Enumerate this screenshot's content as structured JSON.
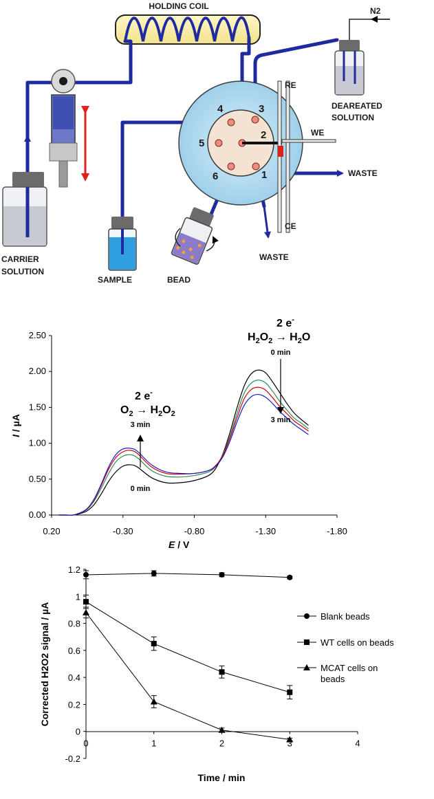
{
  "diagram": {
    "holding_coil": "HOLDING COIL",
    "n2": "N2",
    "re": "RE",
    "we": "WE",
    "ce": "CE",
    "waste_right": "WASTE",
    "waste_bottom": "WASTE",
    "deaerated_1": "DEAREATED",
    "deaerated_2": "SOLUTION",
    "carrier_1": "CARRIER",
    "carrier_2": "SOLUTION",
    "sample": "SAMPLE",
    "bead": "BEAD",
    "ports": [
      "1",
      "2",
      "3",
      "4",
      "5",
      "6"
    ]
  },
  "chart_data": [
    {
      "type": "line",
      "xlabel_italic": "E",
      "xlabel_unit": " / V",
      "ylabel_italic": "I",
      "ylabel_unit": " / µA",
      "xlim": [
        0.2,
        -1.8
      ],
      "ylim": [
        0,
        2.5
      ],
      "x_ticks": [
        "0.20",
        "-0.30",
        "-0.80",
        "-1.30",
        "-1.80"
      ],
      "y_ticks": [
        "0.00",
        "0.50",
        "1.00",
        "1.50",
        "2.00",
        "2.50"
      ],
      "grid": false,
      "series": [
        {
          "color": "#000000",
          "x": [
            0.15,
            0.1,
            0.05,
            0,
            -0.05,
            -0.1,
            -0.15,
            -0.2,
            -0.25,
            -0.3,
            -0.35,
            -0.4,
            -0.5,
            -0.6,
            -0.7,
            -0.8,
            -0.9,
            -0.95,
            -1.0,
            -1.05,
            -1.1,
            -1.15,
            -1.2,
            -1.25,
            -1.3,
            -1.35,
            -1.4,
            -1.45,
            -1.5,
            -1.55,
            -1.6
          ],
          "y": [
            0,
            0,
            0,
            0.02,
            0.06,
            0.15,
            0.3,
            0.47,
            0.6,
            0.68,
            0.7,
            0.67,
            0.52,
            0.45,
            0.45,
            0.48,
            0.55,
            0.65,
            0.85,
            1.15,
            1.5,
            1.8,
            1.97,
            2.02,
            1.98,
            1.85,
            1.7,
            1.55,
            1.42,
            1.33,
            1.25
          ]
        },
        {
          "color": "#2e8b57",
          "x": [
            0.15,
            0.1,
            0.05,
            0,
            -0.05,
            -0.1,
            -0.15,
            -0.2,
            -0.25,
            -0.3,
            -0.35,
            -0.4,
            -0.5,
            -0.6,
            -0.7,
            -0.8,
            -0.9,
            -0.95,
            -1.0,
            -1.05,
            -1.1,
            -1.15,
            -1.2,
            -1.25,
            -1.3,
            -1.35,
            -1.4,
            -1.45,
            -1.5,
            -1.55,
            -1.6
          ],
          "y": [
            0,
            0,
            0,
            0.03,
            0.08,
            0.2,
            0.38,
            0.58,
            0.74,
            0.82,
            0.84,
            0.8,
            0.62,
            0.54,
            0.53,
            0.55,
            0.6,
            0.68,
            0.84,
            1.1,
            1.42,
            1.7,
            1.84,
            1.88,
            1.84,
            1.72,
            1.58,
            1.46,
            1.35,
            1.28,
            1.2
          ]
        },
        {
          "color": "#cc0000",
          "x": [
            0.15,
            0.1,
            0.05,
            0,
            -0.05,
            -0.1,
            -0.15,
            -0.2,
            -0.25,
            -0.3,
            -0.35,
            -0.4,
            -0.5,
            -0.6,
            -0.7,
            -0.8,
            -0.9,
            -0.95,
            -1.0,
            -1.05,
            -1.1,
            -1.15,
            -1.2,
            -1.25,
            -1.3,
            -1.35,
            -1.4,
            -1.45,
            -1.5,
            -1.55,
            -1.6
          ],
          "y": [
            0,
            0,
            0,
            0.03,
            0.09,
            0.22,
            0.42,
            0.64,
            0.8,
            0.88,
            0.9,
            0.86,
            0.67,
            0.58,
            0.57,
            0.58,
            0.62,
            0.69,
            0.83,
            1.07,
            1.36,
            1.62,
            1.75,
            1.78,
            1.74,
            1.63,
            1.51,
            1.41,
            1.31,
            1.24,
            1.17
          ]
        },
        {
          "color": "#1a1acc",
          "x": [
            0.15,
            0.1,
            0.05,
            0,
            -0.05,
            -0.1,
            -0.15,
            -0.2,
            -0.25,
            -0.3,
            -0.35,
            -0.4,
            -0.5,
            -0.6,
            -0.7,
            -0.8,
            -0.9,
            -0.95,
            -1.0,
            -1.05,
            -1.1,
            -1.15,
            -1.2,
            -1.25,
            -1.3,
            -1.35,
            -1.4,
            -1.45,
            -1.5,
            -1.55,
            -1.6
          ],
          "y": [
            0,
            0,
            0,
            0.03,
            0.09,
            0.23,
            0.44,
            0.67,
            0.84,
            0.92,
            0.93,
            0.89,
            0.7,
            0.6,
            0.58,
            0.58,
            0.62,
            0.68,
            0.81,
            1.03,
            1.3,
            1.53,
            1.65,
            1.68,
            1.64,
            1.55,
            1.44,
            1.35,
            1.26,
            1.19,
            1.12
          ]
        }
      ],
      "annotations": {
        "left_electrons": "2 e",
        "left_reactant": "O",
        "left_product": "H",
        "left_top_time": "3 min",
        "left_bottom_time": "0 min",
        "right_electrons": "2 e",
        "right_reactant": "H",
        "right_product": "H",
        "right_top_time": "0 min",
        "right_bottom_time": "3 min",
        "sub2": "2",
        "sup_minus": "-",
        "product_O": "O"
      }
    },
    {
      "type": "scatter",
      "xlabel": "Time / min",
      "ylabel": "Corrected H2O2 signal / µA",
      "xlim": [
        0,
        4
      ],
      "ylim": [
        -0.2,
        1.2
      ],
      "x_ticks": [
        "0",
        "1",
        "2",
        "3",
        "4"
      ],
      "y_ticks": [
        "-0.2",
        "0",
        "0.2",
        "0.4",
        "0.6",
        "0.8",
        "1",
        "1.2"
      ],
      "legend_position": "right",
      "series": [
        {
          "name": "Blank beads",
          "marker": "circle",
          "x": [
            0,
            1,
            2,
            3
          ],
          "y": [
            1.16,
            1.17,
            1.16,
            1.14
          ],
          "err": [
            0.03,
            0.02,
            0.015,
            0.01
          ]
        },
        {
          "name": "WT cells on beads",
          "marker": "square",
          "x": [
            0,
            1,
            2,
            3
          ],
          "y": [
            0.96,
            0.65,
            0.44,
            0.29
          ],
          "err": [
            0.05,
            0.05,
            0.045,
            0.05
          ]
        },
        {
          "name": "MCAT cells on beads",
          "name_line1": "MCAT cells on",
          "name_line2": "beads",
          "marker": "triangle",
          "x": [
            0,
            1,
            2,
            3
          ],
          "y": [
            0.88,
            0.22,
            0.01,
            -0.06
          ],
          "err": [
            0.04,
            0.045,
            0.015,
            0.01
          ]
        }
      ]
    }
  ]
}
